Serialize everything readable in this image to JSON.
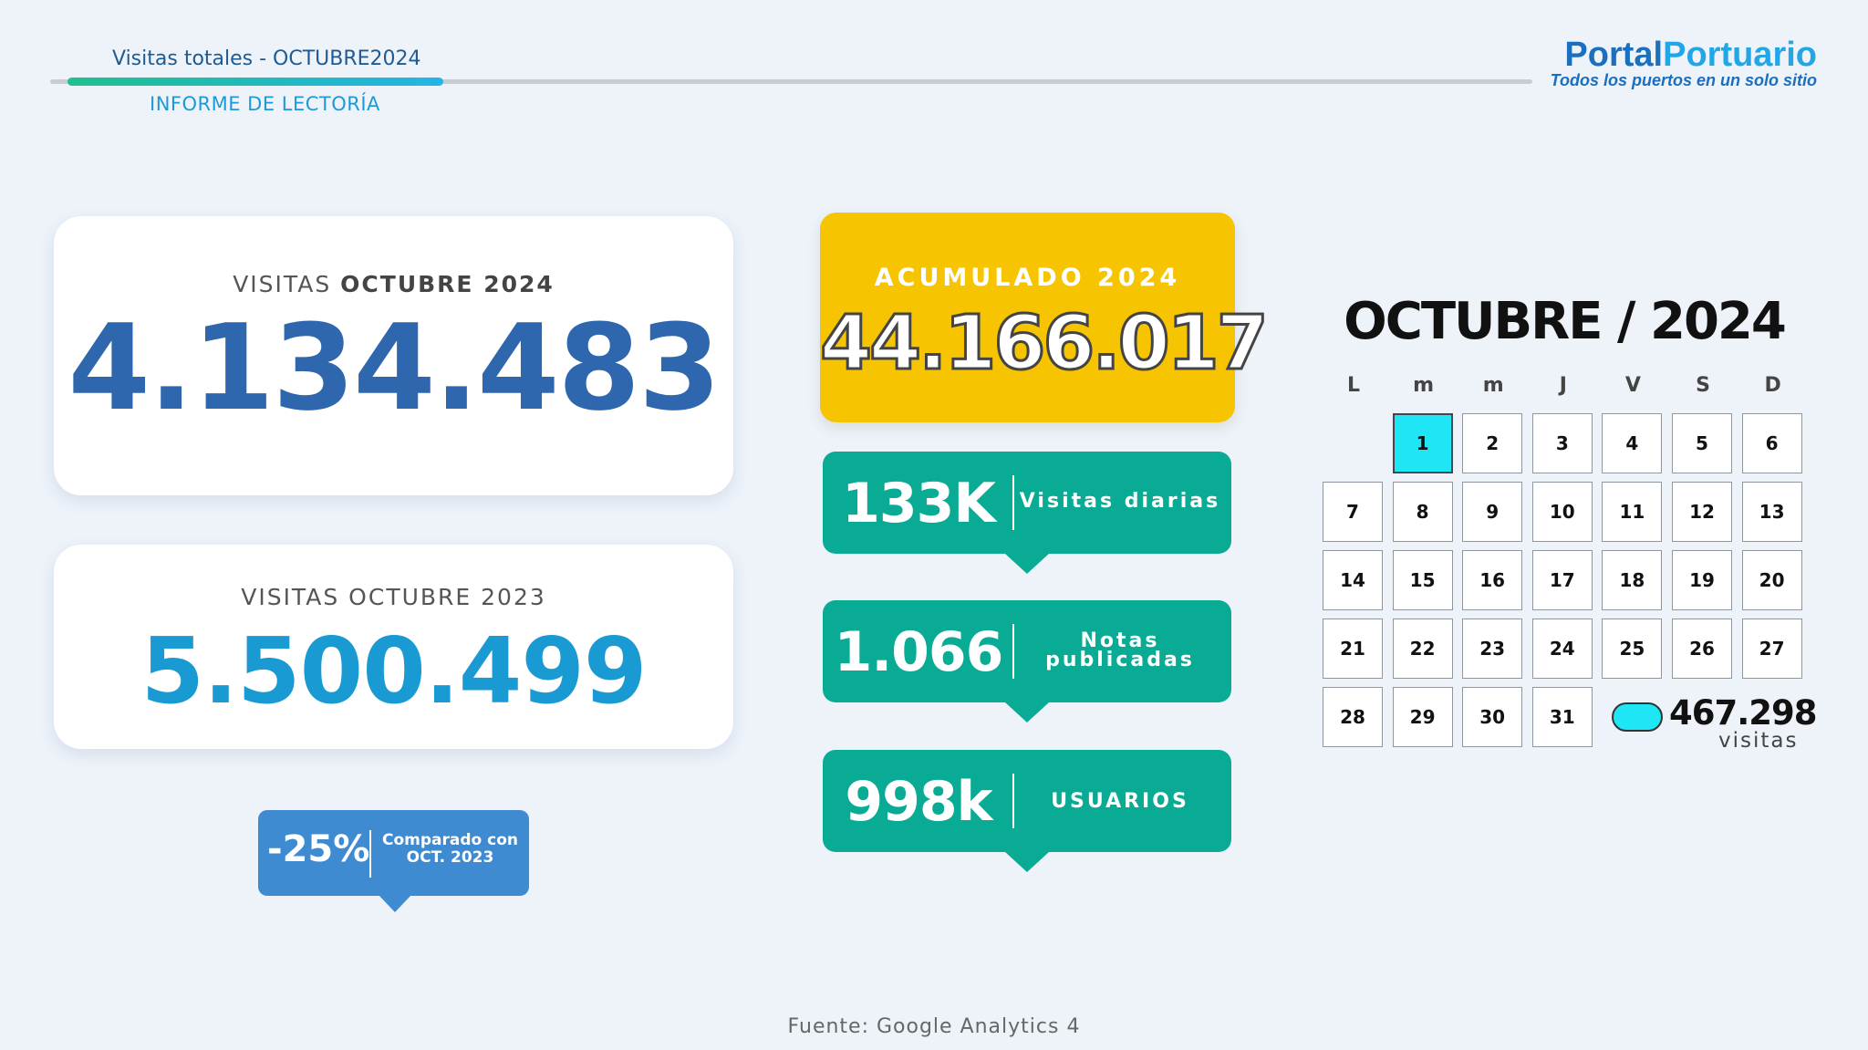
{
  "header": {
    "title": "Visitas totales - OCTUBRE2024",
    "subtitle": "INFORME DE LECTORÍA"
  },
  "logo": {
    "name_part1": "Portal",
    "name_part2": "Portuario",
    "tagline": "Todos los puertos en un solo sitio"
  },
  "current": {
    "label_prefix": "VISITAS ",
    "label_bold": "OCTUBRE 2024",
    "value": "4.134.483"
  },
  "previous": {
    "label": "VISITAS OCTUBRE 2023",
    "value": "5.500.499"
  },
  "comparison": {
    "percent": "-25%",
    "line1": "Comparado con",
    "line2": "OCT. 2023"
  },
  "accumulated": {
    "label": "ACUMULADO 2024",
    "value": "44.166.017"
  },
  "stats": [
    {
      "value": "133K",
      "label_line1": "Visitas diarias",
      "label_line2": ""
    },
    {
      "value": "1.066",
      "label_line1": "Notas",
      "label_line2": "publicadas"
    },
    {
      "value": "998k",
      "label_line1": "USUARIOS",
      "label_line2": ""
    }
  ],
  "calendar": {
    "title": "OCTUBRE / 2024",
    "weekdays": [
      "L",
      "m",
      "m",
      "J",
      "V",
      "S",
      "D"
    ],
    "days": [
      "1",
      "2",
      "3",
      "4",
      "5",
      "6",
      "7",
      "8",
      "9",
      "10",
      "11",
      "12",
      "13",
      "14",
      "15",
      "16",
      "17",
      "18",
      "19",
      "20",
      "21",
      "22",
      "23",
      "24",
      "25",
      "26",
      "27",
      "28",
      "29",
      "30",
      "31"
    ],
    "highlighted_day": "1",
    "highlight_total": "467.298",
    "highlight_unit": "visitas",
    "colors": {
      "highlight": "#1ee6f4"
    }
  },
  "footer": "Fuente: Google Analytics 4"
}
